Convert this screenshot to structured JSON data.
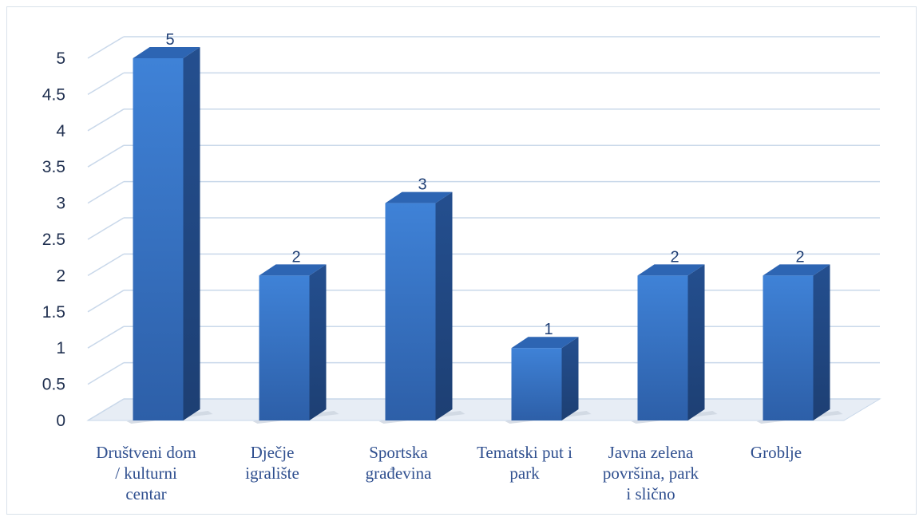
{
  "chart_data": {
    "type": "bar",
    "categories": [
      "Društveni dom / kulturni centar",
      "Dječje igralište",
      "Sportska građevina",
      "Tematski put i park",
      "Javna zelena površina, park i slično",
      "Groblje"
    ],
    "category_lines": [
      [
        "Društveni dom",
        "/ kulturni",
        "centar"
      ],
      [
        "Dječje",
        "igralište"
      ],
      [
        "Sportska",
        "građevina"
      ],
      [
        "Tematski put i",
        "park"
      ],
      [
        "Javna zelena",
        "površina, park",
        "i slično"
      ],
      [
        "Groblje"
      ]
    ],
    "values": [
      5,
      2,
      3,
      1,
      2,
      2
    ],
    "data_labels": [
      "5",
      "2",
      "3",
      "1",
      "2",
      "2"
    ],
    "yticks": [
      "0",
      "0.5",
      "1",
      "1.5",
      "2",
      "2.5",
      "3",
      "3.5",
      "4",
      "4.5",
      "5"
    ],
    "ylim": [
      0,
      5
    ],
    "title": "",
    "xlabel": "",
    "ylabel": "",
    "grid": true,
    "style": "3d-column",
    "colors": {
      "bar_front_top": "#3f82d7",
      "bar_front_bottom": "#2d5fa8",
      "bar_side": "#244f8f",
      "bar_top": "#2d65b3",
      "grid": "#c9d8ea",
      "floor": "#e7edf5"
    }
  }
}
